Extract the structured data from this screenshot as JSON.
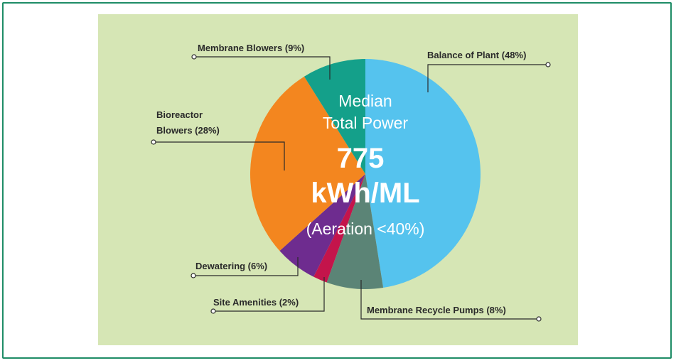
{
  "chart_data": {
    "type": "pie",
    "title": "",
    "slices": [
      {
        "label": "Balance of Plant (48%)",
        "value": 48,
        "color": "#55c3ee"
      },
      {
        "label": "Membrane Recycle Pumps (8%)",
        "value": 8,
        "color": "#5b8476"
      },
      {
        "label": "Site Amenities (2%)",
        "value": 2,
        "color": "#c4144b"
      },
      {
        "label": "Dewatering (6%)",
        "value": 6,
        "color": "#6e2c8f"
      },
      {
        "label": "Bioreactor Blowers (28%)",
        "value": 28,
        "color": "#f3861f"
      },
      {
        "label": "Membrane Blowers (9%)",
        "value": 9,
        "color": "#14a08a"
      }
    ],
    "center_text": {
      "line1": "Median",
      "line2": "Total Power",
      "value": "775",
      "unit": "kWh/ML",
      "note": "(Aeration <40%)"
    }
  },
  "labels": {
    "balance_of_plant": "Balance of Plant (48%)",
    "membrane_recycle_pumps": "Membrane Recycle Pumps (8%)",
    "site_amenities": "Site Amenities (2%)",
    "dewatering": "Dewatering (6%)",
    "bioreactor_line1": "Bioreactor",
    "bioreactor_line2": "Blowers (28%)",
    "membrane_blowers": "Membrane Blowers (9%)"
  },
  "colors": {
    "panel_background": "#d6e6b5",
    "frame_border": "#1e8c66"
  }
}
